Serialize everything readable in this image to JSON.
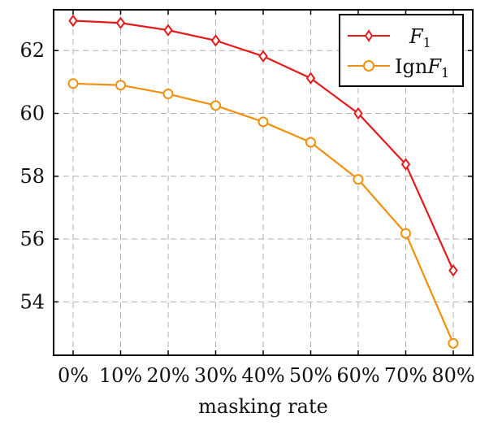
{
  "chart_data": {
    "type": "line",
    "title": "",
    "xlabel": "masking rate",
    "ylabel": "",
    "categories": [
      "0%",
      "10%",
      "20%",
      "30%",
      "40%",
      "50%",
      "60%",
      "70%",
      "80%"
    ],
    "yticks": [
      54,
      56,
      58,
      60,
      62
    ],
    "ylim": [
      52.3,
      63.3
    ],
    "grid": true,
    "legend_position": "top-right",
    "series": [
      {
        "name": "F1",
        "legend_main": "F",
        "legend_sub": "1",
        "marker": "diamond",
        "color": "#e41a1c",
        "values": [
          62.95,
          62.88,
          62.65,
          62.32,
          61.82,
          61.12,
          60.0,
          58.38,
          55.0
        ]
      },
      {
        "name": "IgnF1",
        "legend_prefix": "Ign",
        "legend_main": "F",
        "legend_sub": "1",
        "marker": "circle",
        "color": "#f0900d",
        "values": [
          60.95,
          60.9,
          60.62,
          60.25,
          59.73,
          59.08,
          57.9,
          56.18,
          52.68
        ]
      }
    ]
  }
}
